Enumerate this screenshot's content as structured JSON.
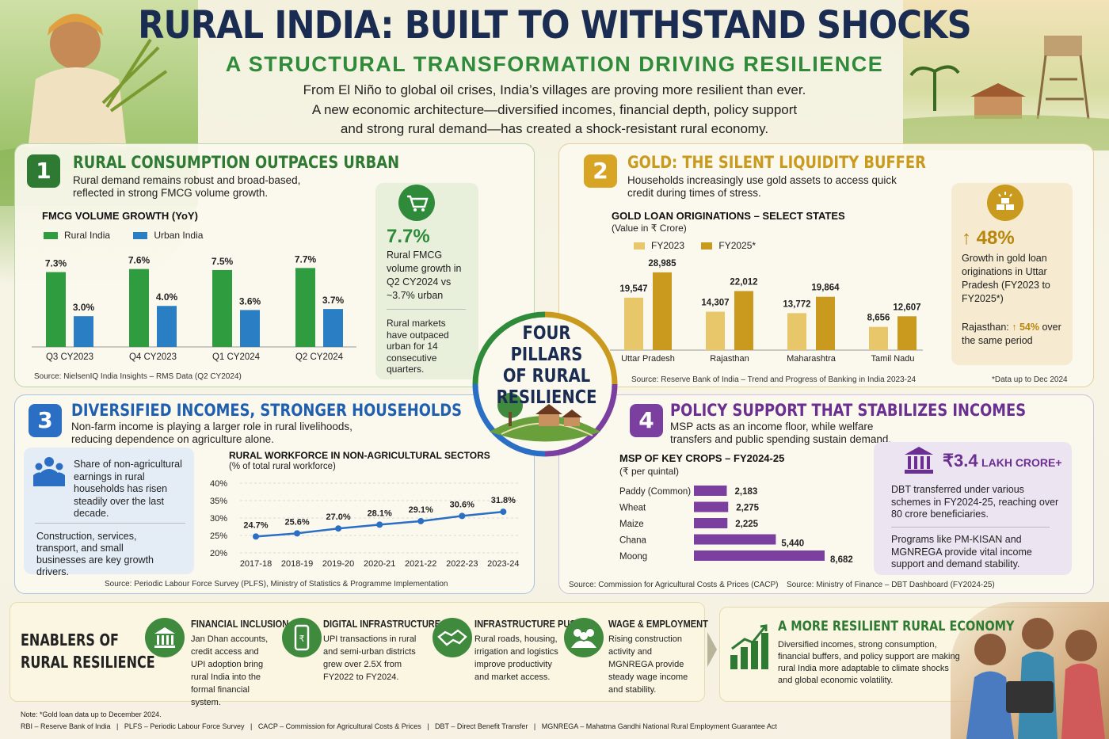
{
  "header": {
    "title": "RURAL INDIA: BUILT TO WITHSTAND SHOCKS",
    "subtitle": "A STRUCTURAL TRANSFORMATION DRIVING RESILIENCE",
    "intro_lines": [
      "From El Niño to global oil crises, India’s villages are proving more resilient than ever.",
      "A new economic architecture—diversified incomes, financial depth, policy support",
      "and strong rural demand—has created a shock-resistant rural economy."
    ]
  },
  "center": {
    "lines": [
      "FOUR PILLARS",
      "OF RURAL",
      "RESILIENCE"
    ]
  },
  "colors": {
    "green": "#2f9c3f",
    "blue": "#2a7fc4",
    "gold_light": "#e8c66a",
    "gold": "#c99a1d",
    "purple": "#7b3fa0",
    "navy": "#1b2c52"
  },
  "section1": {
    "number": "1",
    "title": "RURAL CONSUMPTION OUTPACES URBAN",
    "desc": "Rural demand remains robust and broad-based, reflected in strong FMCG volume growth.",
    "chart_title": "FMCG VOLUME GROWTH (YoY)",
    "legend": [
      "Rural India",
      "Urban India"
    ],
    "source": "Source: NielsenIQ India Insights – RMS Data (Q2 CY2024)",
    "card": {
      "icon": "shopping-cart-icon",
      "stat": "7.7%",
      "text": "Rural FMCG volume growth in Q2 CY2024 vs ~3.7% urban",
      "text2": "Rural markets have outpaced urban for 14 consecutive quarters."
    }
  },
  "section2": {
    "number": "2",
    "title": "GOLD: THE SILENT LIQUIDITY BUFFER",
    "desc": "Households increasingly use gold assets to access quick credit during times of stress.",
    "chart_title": "GOLD LOAN ORIGINATIONS – SELECT STATES",
    "chart_sub": "(Value in ₹ Crore)",
    "legend": [
      "FY2023",
      "FY2025*"
    ],
    "source": "Source: Reserve Bank of India – Trend and Progress of Banking in India 2023-24",
    "footnote": "*Data up to Dec 2024",
    "card": {
      "icon": "gold-bars-icon",
      "stat": "↑ 48%",
      "text": "Growth in gold loan originations in Uttar Pradesh (FY2023 to FY2025*)",
      "text2_prefix": "Rajasthan:",
      "text2_stat": "↑ 54%",
      "text2_suffix": "over the same period"
    }
  },
  "section3": {
    "number": "3",
    "title": "DIVERSIFIED INCOMES, STRONGER HOUSEHOLDS",
    "desc": "Non-farm income is playing a larger role in rural livelihoods, reducing dependence on agriculture alone.",
    "chart_title": "RURAL WORKFORCE IN NON-AGRICULTURAL SECTORS",
    "chart_sub": "(% of total rural workforce)",
    "source": "Source: Periodic Labour Force Survey (PLFS), Ministry of Statistics & Programme Implementation",
    "card": {
      "icon": "people-group-icon",
      "text": "Share of non-agricultural earnings in rural households has risen steadily over the last decade.",
      "text2": "Construction, services, transport, and small businesses are key growth drivers."
    }
  },
  "section4": {
    "number": "4",
    "title": "POLICY SUPPORT THAT STABILIZES INCOMES",
    "desc": "MSP acts as an income floor, while welfare transfers and public spending sustain demand.",
    "chart_title": "MSP OF KEY CROPS – FY2024-25",
    "chart_sub": "(₹ per quintal)",
    "source": "Source: Commission for Agricultural Costs & Prices (CACP)",
    "source2": "Source: Ministry of Finance – DBT Dashboard (FY2024-25)",
    "card": {
      "icon": "government-building-icon",
      "stat": "₹3.4",
      "stat_suffix": "LAKH CRORE+",
      "text": "DBT transferred under various schemes in FY2024-25, reaching over 80 crore beneficiaries.",
      "text2": "Programs like PM-KISAN and MGNREGA provide vital income support and demand stability."
    }
  },
  "enablers": {
    "title_lines": [
      "ENABLERS OF",
      "RURAL RESILIENCE"
    ],
    "items": [
      {
        "icon": "bank-icon",
        "title": "FINANCIAL INCLUSION",
        "desc": "Jan Dhan accounts, credit access and UPI adoption bring rural India into the formal financial system."
      },
      {
        "icon": "mobile-payment-icon",
        "title": "DIGITAL INFRASTRUCTURE",
        "desc": "UPI transactions in rural and semi-urban districts grew over 2.5X from FY2022 to FY2024."
      },
      {
        "icon": "handshake-icon",
        "title": "INFRASTRUCTURE PUSH",
        "desc": "Rural roads, housing, irrigation and logistics improve productivity and market access."
      },
      {
        "icon": "workers-icon",
        "title": "WAGE & EMPLOYMENT",
        "desc": "Rising construction activity and MGNREGA provide steady wage income and stability."
      }
    ],
    "result": {
      "icon": "growth-chart-icon",
      "title": "A MORE RESILIENT RURAL ECONOMY",
      "desc": "Diversified incomes, strong consumption, financial buffers, and policy support are making rural India more adaptable to climate shocks and global economic volatility."
    }
  },
  "notes": {
    "note": "Note: *Gold loan data up to December 2024.",
    "abbrev": "RBI – Reserve Bank of India   |   PLFS – Periodic Labour Force Survey   |   CACP – Commission for Agricultural Costs & Prices   |   DBT – Direct Benefit Transfer   |   MGNREGA – Mahatma Gandhi National Rural Employment Guarantee Act"
  },
  "chart_data": [
    {
      "type": "bar",
      "title": "FMCG VOLUME GROWTH (YoY)",
      "categories": [
        "Q3 CY2023",
        "Q4 CY2023",
        "Q1 CY2024",
        "Q2 CY2024"
      ],
      "series": [
        {
          "name": "Rural India",
          "values": [
            7.3,
            7.6,
            7.5,
            7.7
          ],
          "labels": [
            "7.3%",
            "7.6%",
            "7.5%",
            "7.7%"
          ],
          "color": "#2f9c3f"
        },
        {
          "name": "Urban India",
          "values": [
            3.0,
            4.0,
            3.6,
            3.7
          ],
          "labels": [
            "3.0%",
            "4.0%",
            "3.6%",
            "3.7%"
          ],
          "color": "#2a7fc4"
        }
      ],
      "ylim": [
        0,
        8.5
      ]
    },
    {
      "type": "bar",
      "title": "GOLD LOAN ORIGINATIONS – SELECT STATES",
      "ylabel": "(Value in ₹ Crore)",
      "categories": [
        "Uttar Pradesh",
        "Rajasthan",
        "Maharashtra",
        "Tamil Nadu"
      ],
      "series": [
        {
          "name": "FY2023",
          "values": [
            19547,
            14307,
            13772,
            8656
          ],
          "labels": [
            "19,547",
            "14,307",
            "13,772",
            "8,656"
          ],
          "color": "#e8c66a"
        },
        {
          "name": "FY2025*",
          "values": [
            28985,
            22012,
            19864,
            12607
          ],
          "labels": [
            "28,985",
            "22,012",
            "19,864",
            "12,607"
          ],
          "color": "#c99a1d"
        }
      ],
      "ylim": [
        0,
        31000
      ]
    },
    {
      "type": "line",
      "title": "RURAL WORKFORCE IN NON-AGRICULTURAL SECTORS",
      "ylabel": "(% of total rural workforce)",
      "x": [
        "2017-18",
        "2018-19",
        "2019-20",
        "2020-21",
        "2021-22",
        "2022-23",
        "2023-24"
      ],
      "series": [
        {
          "values": [
            24.7,
            25.6,
            27.0,
            28.1,
            29.1,
            30.6,
            31.8
          ],
          "labels": [
            "24.7%",
            "25.6%",
            "27.0%",
            "28.1%",
            "29.1%",
            "30.6%",
            "31.8%"
          ],
          "color": "#2a6fc4"
        }
      ],
      "yticks": [
        "20%",
        "25%",
        "30%",
        "35%",
        "40%"
      ],
      "ylim": [
        20,
        40
      ],
      "grid": true
    },
    {
      "type": "bar",
      "orientation": "horizontal",
      "title": "MSP OF KEY CROPS – FY2024-25",
      "ylabel": "(₹ per quintal)",
      "categories": [
        "Paddy (Common)",
        "Wheat",
        "Maize",
        "Chana",
        "Moong"
      ],
      "values": [
        2183,
        2275,
        2225,
        5440,
        8682
      ],
      "labels": [
        "2,183",
        "2,275",
        "2,225",
        "5,440",
        "8,682"
      ],
      "color": "#7b3fa0",
      "xlim": [
        0,
        8682
      ]
    }
  ]
}
